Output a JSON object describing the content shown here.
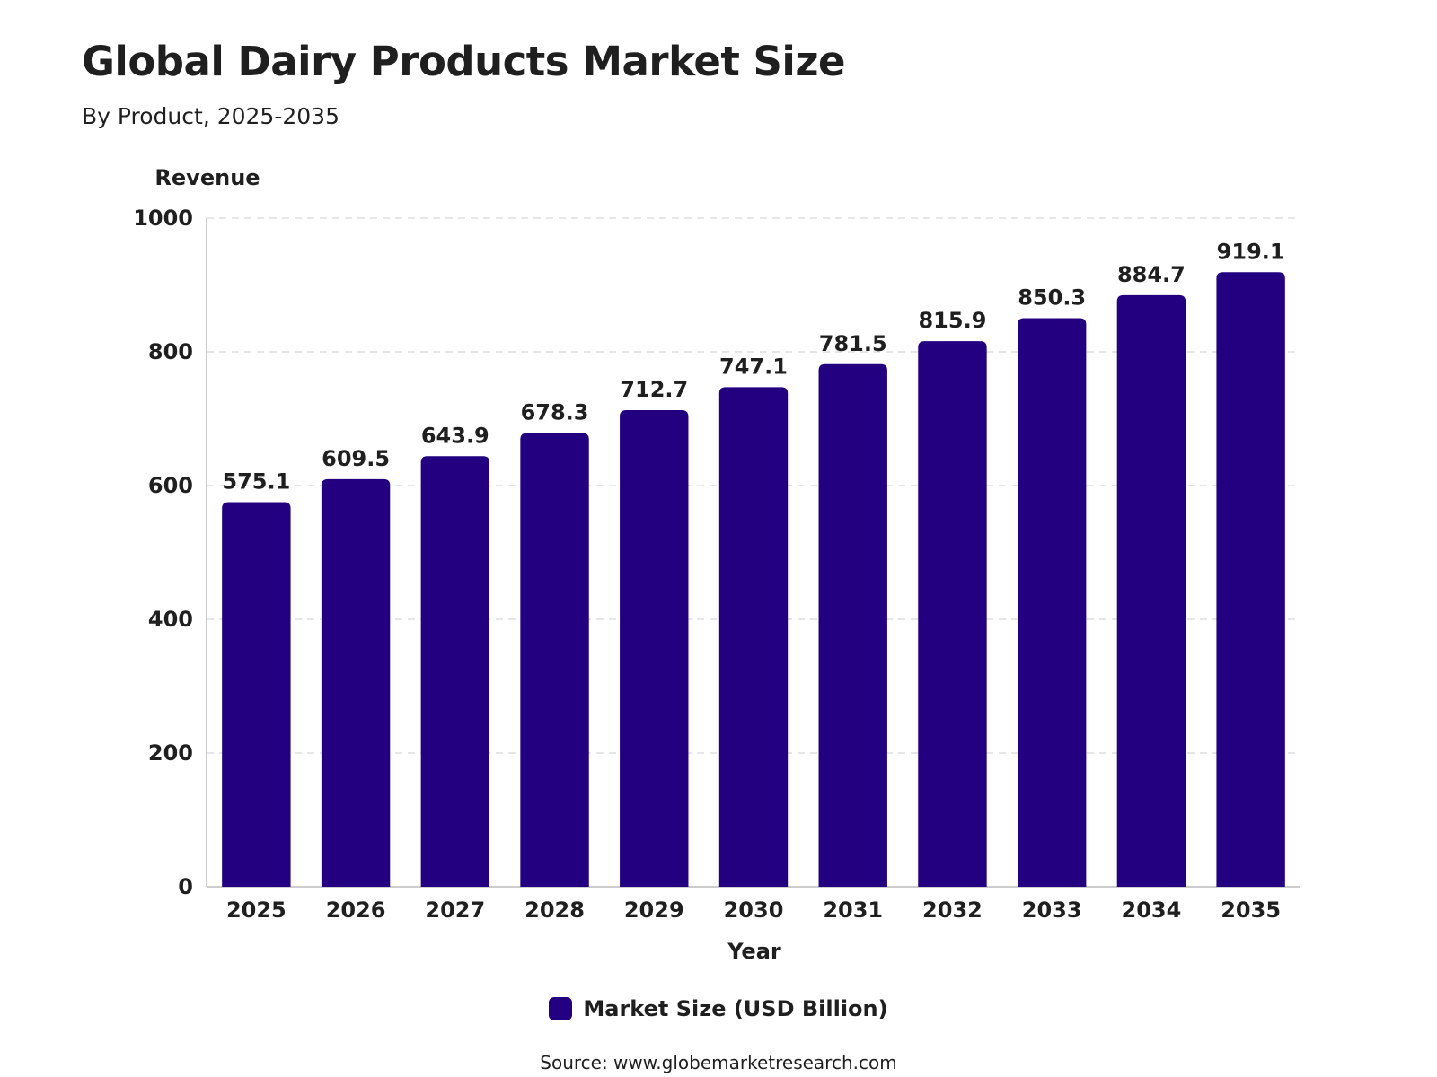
{
  "title": "Global Dairy Products Market Size",
  "subtitle": "By Product, 2025-2035",
  "source": "Source: www.globemarketresearch.com",
  "colors": {
    "bar": "#22007f",
    "grid": "#dddddd",
    "axis": "#cccccc",
    "text": "#1f1f1f"
  },
  "chart_data": {
    "type": "bar",
    "title": "Global Dairy Products Market Size",
    "subtitle": "By Product, 2025-2035",
    "xlabel": "Year",
    "ylabel": "Revenue",
    "categories": [
      "2025",
      "2026",
      "2027",
      "2028",
      "2029",
      "2030",
      "2031",
      "2032",
      "2033",
      "2034",
      "2035"
    ],
    "series": [
      {
        "name": "Market Size (USD Billion)",
        "values": [
          575.1,
          609.5,
          643.9,
          678.3,
          712.7,
          747.1,
          781.5,
          815.9,
          850.3,
          884.7,
          919.1
        ]
      }
    ],
    "ylim": [
      0,
      1000
    ],
    "yticks": [
      0,
      200,
      400,
      600,
      800,
      1000
    ],
    "grid": true,
    "legend_position": "bottom-center",
    "data_labels": true
  }
}
